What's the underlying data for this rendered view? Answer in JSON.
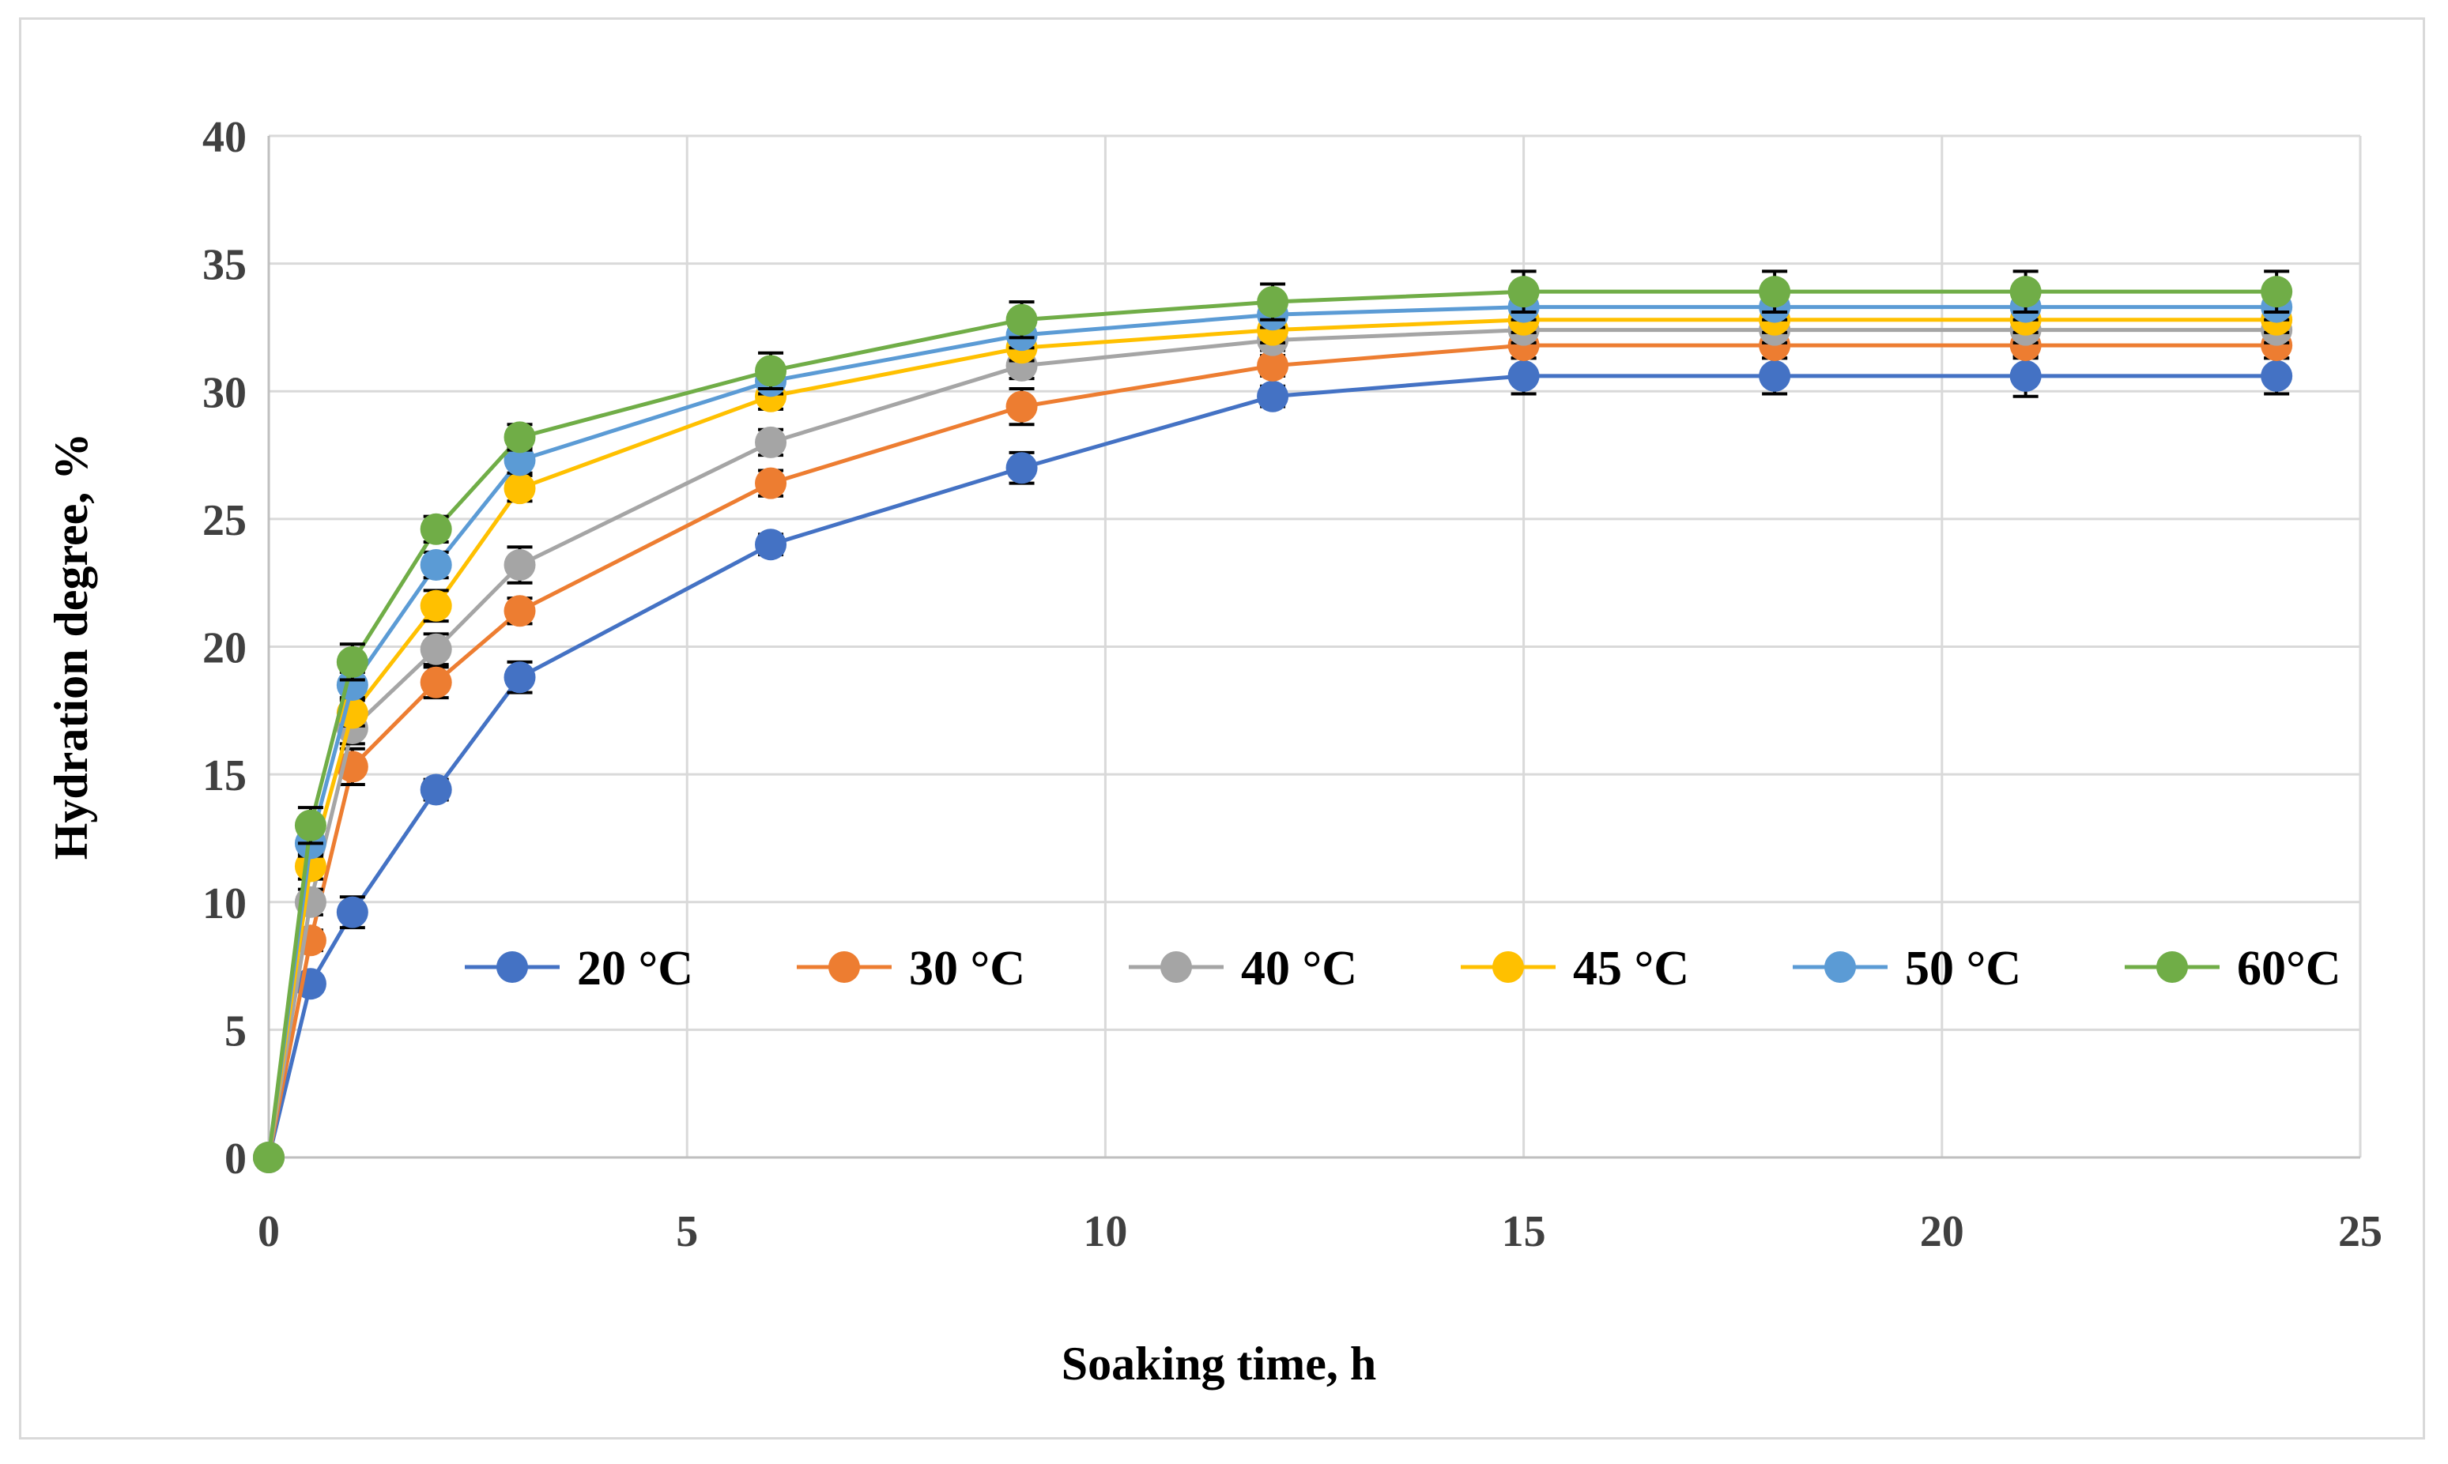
{
  "chart_data": {
    "type": "line",
    "title": "",
    "xlabel": "Soaking time, h",
    "ylabel": "Hydration degree, %",
    "xlim": [
      0,
      25
    ],
    "ylim": [
      0,
      40
    ],
    "xticks": [
      0,
      5,
      10,
      15,
      20,
      25
    ],
    "yticks": [
      0,
      5,
      10,
      15,
      20,
      25,
      30,
      35,
      40
    ],
    "grid": true,
    "legend_position": "inside-lower-right",
    "x": [
      0,
      0.5,
      1,
      2,
      3,
      6,
      9,
      12,
      15,
      18,
      21,
      24
    ],
    "series": [
      {
        "name": "20 °C",
        "color": "#4472c4",
        "values": [
          0,
          6.8,
          9.6,
          14.4,
          18.8,
          24.0,
          27.0,
          29.8,
          30.6,
          30.6,
          30.6,
          30.6
        ],
        "error": [
          0,
          0.3,
          0.6,
          0.4,
          0.6,
          0.4,
          0.6,
          0.4,
          0.7,
          0.7,
          0.8,
          0.7
        ]
      },
      {
        "name": "30 °C",
        "color": "#ed7d31",
        "values": [
          0,
          8.5,
          15.3,
          18.6,
          21.4,
          26.4,
          29.4,
          31.0,
          31.8,
          31.8,
          31.8,
          31.8
        ],
        "error": [
          0,
          0.4,
          0.7,
          0.6,
          0.5,
          0.5,
          0.7,
          0.4,
          0.5,
          0.5,
          0.5,
          0.5
        ]
      },
      {
        "name": "40 °C",
        "color": "#a5a5a5",
        "values": [
          0,
          10.0,
          16.8,
          19.9,
          23.2,
          28.0,
          31.0,
          32.0,
          32.4,
          32.4,
          32.4,
          32.4
        ],
        "error": [
          0,
          0.5,
          0.6,
          0.6,
          0.7,
          0.5,
          0.5,
          0.4,
          0.5,
          0.5,
          0.5,
          0.5
        ]
      },
      {
        "name": "45 °C",
        "color": "#ffc000",
        "values": [
          0,
          11.4,
          17.4,
          21.6,
          26.2,
          29.8,
          31.7,
          32.4,
          32.8,
          32.8,
          32.8,
          32.8
        ],
        "error": [
          0,
          0.5,
          0.5,
          0.6,
          0.5,
          0.5,
          0.5,
          0.5,
          0.5,
          0.5,
          0.5,
          0.5
        ]
      },
      {
        "name": "50 °C",
        "color": "#5b9bd5",
        "values": [
          0,
          12.3,
          18.5,
          23.2,
          27.3,
          30.4,
          32.2,
          33.0,
          33.3,
          33.3,
          33.3,
          33.3
        ],
        "error": [
          0,
          0.5,
          0.5,
          0.5,
          0.5,
          0.5,
          0.5,
          0.5,
          0.5,
          0.5,
          0.5,
          0.5
        ]
      },
      {
        "name": "60°C",
        "color": "#70ad47",
        "values": [
          0,
          13.0,
          19.4,
          24.6,
          28.2,
          30.8,
          32.8,
          33.5,
          33.9,
          33.9,
          33.9,
          33.9
        ],
        "error": [
          0,
          0.7,
          0.7,
          0.5,
          0.5,
          0.7,
          0.7,
          0.7,
          0.8,
          0.8,
          0.8,
          0.8
        ]
      }
    ]
  }
}
